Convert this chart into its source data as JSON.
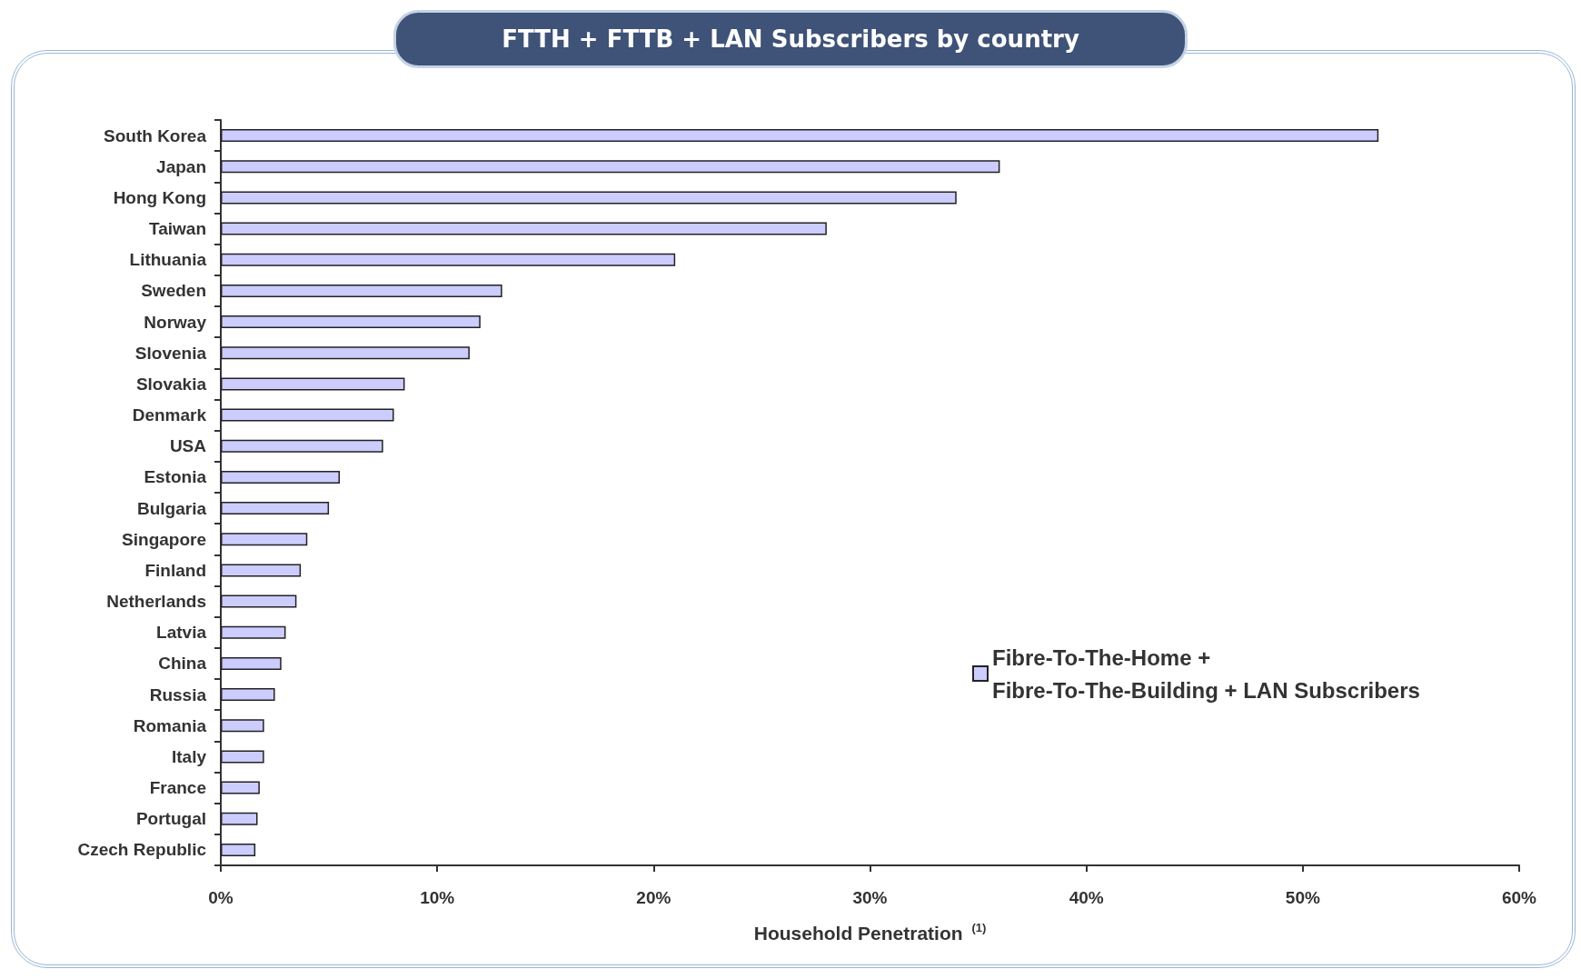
{
  "chart_data": {
    "type": "bar",
    "orientation": "horizontal",
    "title": "FTTH + FTTB + LAN Subscribers by country",
    "xlabel": "Household Penetration $^{(1)}$",
    "categories": [
      "South Korea",
      "Japan",
      "Hong Kong",
      "Taiwan",
      "Lithuania",
      "Sweden",
      "Norway",
      "Slovenia",
      "Slovakia",
      "Denmark",
      "USA",
      "Estonia",
      "Bulgaria",
      "Singapore",
      "Finland",
      "Netherlands",
      "Latvia",
      "China",
      "Russia",
      "Romania",
      "Italy",
      "France",
      "Portugal",
      "Czech Republic"
    ],
    "series": [
      {
        "name": "Fibre-To-The-Home + Fibre-To-The-Building + LAN Subscribers",
        "color": "#ccccff",
        "values": [
          53.5,
          36.0,
          34.0,
          28.0,
          21.0,
          13.0,
          12.0,
          11.5,
          8.5,
          8.0,
          7.5,
          5.5,
          5.0,
          4.0,
          3.7,
          3.5,
          3.0,
          2.8,
          2.5,
          2.0,
          2.0,
          1.8,
          1.7,
          1.6
        ]
      }
    ],
    "xlim": [
      0,
      60
    ],
    "xticks": [
      {
        "value": 0,
        "label": "0%"
      },
      {
        "value": 10,
        "label": "10%"
      },
      {
        "value": 20,
        "label": "20%"
      },
      {
        "value": 30,
        "label": "30%"
      },
      {
        "value": 40,
        "label": "40%"
      },
      {
        "value": 50,
        "label": "50%"
      },
      {
        "value": 60,
        "label": "60%"
      }
    ],
    "grid": false,
    "legend": "right"
  }
}
